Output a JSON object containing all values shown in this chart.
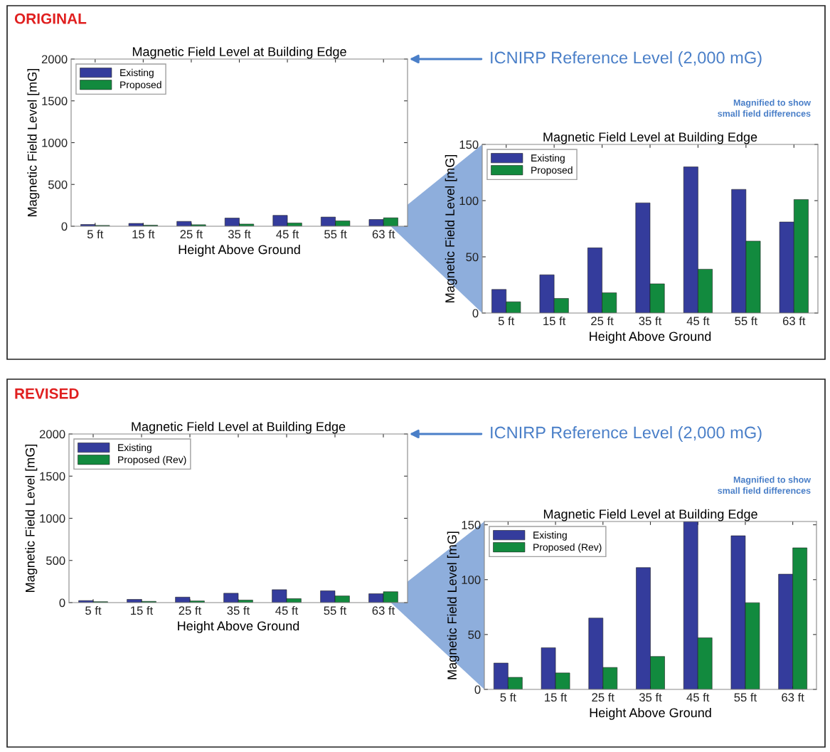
{
  "chart_data": [
    {
      "type": "bar",
      "title": "Magnetic Field Level at Building Edge",
      "xlabel": "Height Above Ground",
      "ylabel": "Magnetic Field Level [mG]",
      "categories": [
        "5 ft",
        "15 ft",
        "25 ft",
        "35 ft",
        "45 ft",
        "55 ft",
        "63 ft"
      ],
      "series": [
        {
          "name": "Existing",
          "color": "#343c9c",
          "values": [
            21,
            34,
            58,
            98,
            130,
            110,
            81
          ]
        },
        {
          "name": "Proposed",
          "color": "#128a3e",
          "values": [
            10,
            13,
            18,
            26,
            39,
            64,
            101
          ]
        }
      ],
      "ylim": [
        0,
        2000
      ],
      "yticks": [
        0,
        500,
        1000,
        1500,
        2000
      ],
      "legend": "top left",
      "grid": false,
      "annotations": [
        "ORIGINAL",
        "ICNIRP Reference Level (2,000 mG)"
      ]
    },
    {
      "type": "bar",
      "title": "Magnetic Field Level at Building Edge",
      "xlabel": "Height Above Ground",
      "ylabel": "Magnetic Field Level [mG]",
      "categories": [
        "5 ft",
        "15 ft",
        "25 ft",
        "35 ft",
        "45 ft",
        "55 ft",
        "63 ft"
      ],
      "series": [
        {
          "name": "Existing",
          "color": "#343c9c",
          "values": [
            21,
            34,
            58,
            98,
            130,
            110,
            81
          ]
        },
        {
          "name": "Proposed",
          "color": "#128a3e",
          "values": [
            10,
            13,
            18,
            26,
            39,
            64,
            101
          ]
        }
      ],
      "ylim": [
        0,
        150
      ],
      "yticks": [
        0,
        50,
        100,
        150
      ],
      "legend": "top left",
      "grid": false,
      "annotations": [
        "Magnified to show\nsmall field differences"
      ]
    },
    {
      "type": "bar",
      "title": "Magnetic Field Level at Building Edge",
      "xlabel": "Height Above Ground",
      "ylabel": "Magnetic Field Level [mG]",
      "categories": [
        "5 ft",
        "15 ft",
        "25 ft",
        "35 ft",
        "45 ft",
        "55 ft",
        "63 ft"
      ],
      "series": [
        {
          "name": "Existing",
          "color": "#343c9c",
          "values": [
            24,
            38,
            65,
            111,
            153,
            140,
            105
          ]
        },
        {
          "name": "Proposed (Rev)",
          "color": "#128a3e",
          "values": [
            11,
            15,
            20,
            30,
            47,
            79,
            129
          ]
        }
      ],
      "ylim": [
        0,
        2000
      ],
      "yticks": [
        0,
        500,
        1000,
        1500,
        2000
      ],
      "legend": "top left",
      "grid": false,
      "annotations": [
        "REVISED",
        "ICNIRP Reference Level (2,000 mG)"
      ]
    },
    {
      "type": "bar",
      "title": "Magnetic Field Level at Building Edge",
      "xlabel": "Height Above Ground",
      "ylabel": "Magnetic Field Level [mG]",
      "categories": [
        "5 ft",
        "15 ft",
        "25 ft",
        "35 ft",
        "45 ft",
        "55 ft",
        "63 ft"
      ],
      "series": [
        {
          "name": "Existing",
          "color": "#343c9c",
          "values": [
            24,
            38,
            65,
            111,
            153,
            140,
            105
          ]
        },
        {
          "name": "Proposed (Rev)",
          "color": "#128a3e",
          "values": [
            11,
            15,
            20,
            30,
            47,
            79,
            129
          ]
        }
      ],
      "ylim": [
        0,
        153
      ],
      "yticks": [
        0,
        50,
        100,
        150
      ],
      "legend": "top left",
      "grid": false,
      "annotations": [
        "Magnified to show\nsmall field differences"
      ]
    }
  ]
}
